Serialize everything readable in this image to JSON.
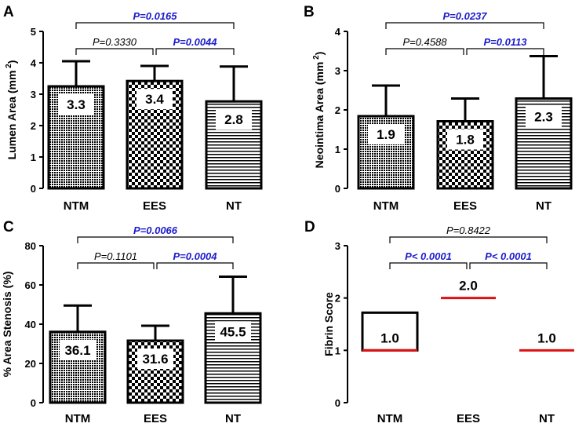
{
  "colors": {
    "significant": "#1c1ccc",
    "nonsignificant": "#000000",
    "mean_line": "#e01010"
  },
  "chart_data": [
    {
      "panel": "A",
      "type": "bar",
      "title": "",
      "categories": [
        "NTM",
        "EES",
        "NT"
      ],
      "patterns": [
        "dots",
        "checker",
        "hlines"
      ],
      "values": [
        3.3,
        3.4,
        2.8
      ],
      "bar_tops": [
        3.25,
        3.42,
        2.77
      ],
      "error_tops": [
        4.05,
        3.9,
        3.88
      ],
      "value_labels": [
        "3.3",
        "3.4",
        "2.8"
      ],
      "ylabel": "Lumen Area (mm²)",
      "ylabel_main": "Lumen Area (mm",
      "ylabel_sup": "2",
      "ylabel_close": ")",
      "ylim": [
        0,
        5
      ],
      "yticks": [
        0,
        1,
        2,
        3,
        4,
        5
      ],
      "comparisons": [
        {
          "from": 0,
          "to": 2,
          "label": "P=0.0165",
          "significant": true,
          "level": 2
        },
        {
          "from": 0,
          "to": 1,
          "label": "P=0.3330",
          "significant": false,
          "level": 1
        },
        {
          "from": 1,
          "to": 2,
          "label": "P=0.0044",
          "significant": true,
          "level": 1
        }
      ]
    },
    {
      "panel": "B",
      "type": "bar",
      "title": "",
      "categories": [
        "NTM",
        "EES",
        "NT"
      ],
      "patterns": [
        "dots",
        "checker",
        "hlines"
      ],
      "values": [
        1.9,
        1.8,
        2.3
      ],
      "bar_tops": [
        1.84,
        1.71,
        2.29
      ],
      "error_tops": [
        2.62,
        2.29,
        3.37
      ],
      "value_labels": [
        "1.9",
        "1.8",
        "2.3"
      ],
      "ylabel": "Neointima Area (mm²)",
      "ylabel_main": "Neointima Area (mm",
      "ylabel_sup": "2",
      "ylabel_close": ")",
      "ylim": [
        0,
        4
      ],
      "yticks": [
        0,
        1,
        2,
        3,
        4
      ],
      "comparisons": [
        {
          "from": 0,
          "to": 2,
          "label": "P=0.0237",
          "significant": true,
          "level": 2
        },
        {
          "from": 0,
          "to": 1,
          "label": "P=0.4588",
          "significant": false,
          "level": 1
        },
        {
          "from": 1,
          "to": 2,
          "label": "P=0.0113",
          "significant": true,
          "level": 1
        }
      ]
    },
    {
      "panel": "C",
      "type": "bar",
      "title": "",
      "categories": [
        "NTM",
        "EES",
        "NT"
      ],
      "patterns": [
        "dots",
        "checker",
        "hlines"
      ],
      "values": [
        36.1,
        31.6,
        45.5
      ],
      "bar_tops": [
        36.1,
        31.6,
        45.5
      ],
      "error_tops": [
        49.5,
        39.2,
        64.2
      ],
      "value_labels": [
        "36.1",
        "31.6",
        "45.5"
      ],
      "ylabel": "% Area Stenosis (%)",
      "ylabel_main": "% Area Stenosis (%)",
      "ylabel_sup": "",
      "ylabel_close": "",
      "ylim": [
        0,
        80
      ],
      "yticks": [
        0,
        20,
        40,
        60,
        80
      ],
      "comparisons": [
        {
          "from": 0,
          "to": 2,
          "label": "P=0.0066",
          "significant": true,
          "level": 2
        },
        {
          "from": 0,
          "to": 1,
          "label": "P=0.1101",
          "significant": false,
          "level": 1
        },
        {
          "from": 1,
          "to": 2,
          "label": "P=0.0004",
          "significant": true,
          "level": 1
        }
      ]
    },
    {
      "panel": "D",
      "type": "scatter",
      "title": "",
      "categories": [
        "NTM",
        "EES",
        "NT"
      ],
      "values": [
        1.0,
        2.0,
        1.0
      ],
      "box_top": [
        1.72,
        null,
        null
      ],
      "value_labels": [
        "1.0",
        "2.0",
        "1.0"
      ],
      "ylabel": "Fibrin Score",
      "ylabel_main": "Fibrin Score",
      "ylabel_sup": "",
      "ylabel_close": "",
      "ylim": [
        0,
        3
      ],
      "yticks": [
        0,
        1,
        2,
        3
      ],
      "comparisons": [
        {
          "from": 0,
          "to": 2,
          "label": "P=0.8422",
          "significant": false,
          "level": 2
        },
        {
          "from": 0,
          "to": 1,
          "label": "P< 0.0001",
          "significant": true,
          "level": 1
        },
        {
          "from": 1,
          "to": 2,
          "label": "P< 0.0001",
          "significant": true,
          "level": 1
        }
      ]
    }
  ]
}
